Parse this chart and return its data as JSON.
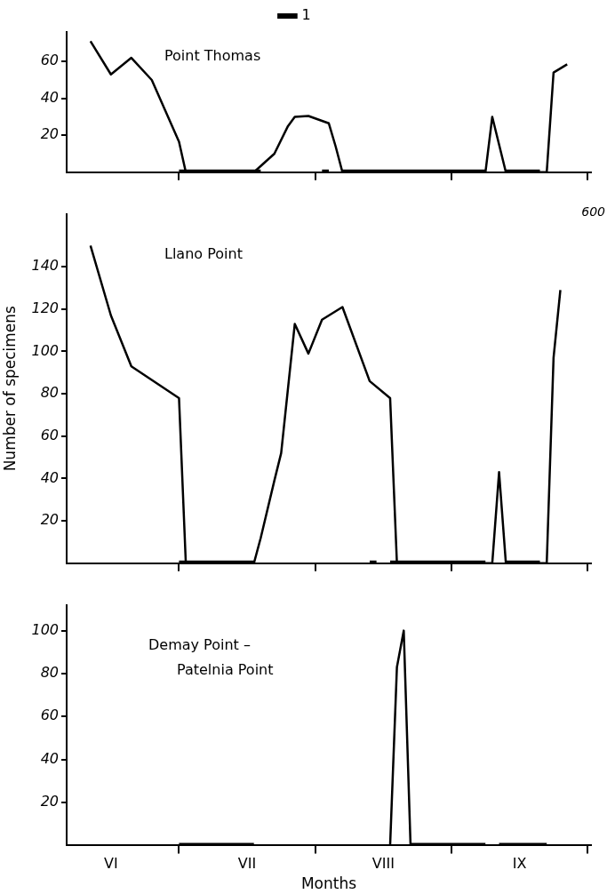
{
  "chart_data": [
    {
      "type": "line",
      "title": "Point Thomas",
      "legend": "top",
      "marker": "none",
      "grid": false,
      "tick_labels": "y",
      "ylim": [
        0,
        76
      ],
      "yticks": [
        20,
        40,
        60
      ],
      "categories": [
        null,
        null,
        null,
        null,
        null,
        null,
        null,
        null,
        null,
        null,
        null,
        null,
        null,
        null,
        null,
        null,
        null,
        null,
        null,
        null,
        null,
        null,
        null,
        null,
        null,
        null,
        null,
        null,
        null,
        null,
        null,
        null,
        null,
        null,
        null,
        null,
        null,
        null,
        null,
        null,
        null,
        null,
        null,
        null,
        null,
        null,
        null,
        null,
        null,
        null,
        null,
        null,
        null,
        null,
        null,
        null,
        null,
        null,
        null,
        null,
        null,
        null,
        null,
        null,
        null,
        null,
        null,
        null,
        null,
        null,
        null,
        null,
        null,
        null,
        null,
        null,
        null
      ],
      "series": [
        {
          "color": "#000000",
          "values": [
            null,
            null,
            null,
            71,
            null,
            null,
            53,
            null,
            null,
            62,
            null,
            null,
            50,
            null,
            null,
            null,
            16.5,
            0,
            null,
            null,
            null,
            null,
            null,
            null,
            null,
            null,
            null,
            0,
            null,
            null,
            10,
            null,
            25,
            30,
            null,
            30.5,
            null,
            null,
            26.5,
            14,
            0,
            null,
            null,
            null,
            null,
            null,
            null,
            null,
            null,
            null,
            null,
            null,
            null,
            null,
            null,
            null,
            null,
            null,
            null,
            null,
            null,
            0,
            30,
            null,
            0,
            null,
            null,
            null,
            null,
            null,
            0,
            54,
            null,
            58.5,
            null,
            null,
            null
          ]
        },
        {
          "name": "1",
          "color": "#000000",
          "values": [
            null,
            null,
            null,
            null,
            null,
            null,
            null,
            null,
            null,
            null,
            null,
            null,
            null,
            null,
            null,
            null,
            0,
            0,
            0,
            0,
            0,
            0,
            0,
            0,
            0,
            0,
            0,
            0,
            0,
            null,
            null,
            null,
            null,
            null,
            null,
            null,
            null,
            0,
            0,
            null,
            0,
            0,
            0,
            0,
            0,
            0,
            0,
            0,
            0,
            0,
            0,
            0,
            0,
            0,
            0,
            0,
            0,
            0,
            0,
            0,
            0,
            0,
            null,
            null,
            0,
            0,
            0,
            0,
            0,
            0,
            null,
            null,
            null,
            null,
            null,
            null,
            null
          ]
        }
      ]
    },
    {
      "type": "line",
      "title": "Llano Point",
      "ylabel": "Number of specimens",
      "marker": "none",
      "grid": false,
      "tick_labels": "y",
      "ylim": [
        0,
        165
      ],
      "yticks": [
        20,
        40,
        60,
        80,
        100,
        120,
        140
      ],
      "categories": [
        null,
        null,
        null,
        null,
        null,
        null,
        null,
        null,
        null,
        null,
        null,
        null,
        null,
        null,
        null,
        null,
        null,
        null,
        null,
        null,
        null,
        null,
        null,
        null,
        null,
        null,
        null,
        null,
        null,
        null,
        null,
        null,
        null,
        null,
        null,
        null,
        null,
        null,
        null,
        null,
        null,
        null,
        null,
        null,
        null,
        null,
        null,
        null,
        null,
        null,
        null,
        null,
        null,
        null,
        null,
        null,
        null,
        null,
        null,
        null,
        null,
        null,
        null,
        null,
        null,
        null,
        null,
        null,
        null,
        null,
        null,
        null,
        null,
        null,
        null,
        null,
        null
      ],
      "annotations": [
        "600"
      ],
      "series": [
        {
          "color": "#000000",
          "values": [
            null,
            null,
            null,
            150,
            null,
            null,
            117,
            null,
            null,
            93,
            null,
            null,
            null,
            null,
            null,
            null,
            78,
            0,
            null,
            null,
            null,
            null,
            null,
            null,
            null,
            null,
            null,
            0,
            12,
            null,
            39,
            52,
            null,
            113,
            null,
            99,
            null,
            115,
            null,
            null,
            121,
            null,
            null,
            null,
            86,
            null,
            null,
            78,
            0,
            null,
            null,
            null,
            null,
            null,
            null,
            null,
            null,
            null,
            null,
            null,
            null,
            null,
            0,
            43,
            0,
            null,
            null,
            null,
            null,
            null,
            0,
            97,
            129,
            null,
            null,
            null,
            null
          ]
        },
        {
          "color": "#000000",
          "values": [
            null,
            null,
            null,
            null,
            null,
            null,
            null,
            null,
            null,
            null,
            null,
            null,
            null,
            null,
            null,
            null,
            0,
            0,
            0,
            0,
            0,
            0,
            0,
            0,
            0,
            0,
            0,
            0,
            null,
            null,
            null,
            null,
            null,
            null,
            null,
            null,
            null,
            null,
            null,
            null,
            null,
            null,
            null,
            null,
            0,
            0,
            null,
            0,
            0,
            0,
            0,
            0,
            0,
            0,
            0,
            0,
            0,
            0,
            0,
            0,
            0,
            0,
            null,
            null,
            0,
            0,
            0,
            0,
            0,
            0,
            null,
            null,
            null,
            null,
            null,
            null,
            null
          ]
        }
      ]
    },
    {
      "type": "line",
      "title": "Demay Point –\nPatelnia Point",
      "xlabel": "Months",
      "marker": "none",
      "grid": false,
      "ylim": [
        0,
        112
      ],
      "yticks": [
        20,
        40,
        60,
        80,
        100
      ],
      "categories": [
        null,
        null,
        null,
        null,
        null,
        null,
        "VI",
        null,
        null,
        null,
        null,
        null,
        null,
        null,
        null,
        null,
        null,
        null,
        null,
        null,
        null,
        null,
        null,
        null,
        null,
        null,
        "VII",
        null,
        null,
        null,
        null,
        null,
        null,
        null,
        null,
        null,
        null,
        null,
        null,
        null,
        null,
        null,
        null,
        null,
        null,
        null,
        "VIII",
        null,
        null,
        null,
        null,
        null,
        null,
        null,
        null,
        null,
        null,
        null,
        null,
        null,
        null,
        null,
        null,
        null,
        null,
        null,
        "IX",
        null,
        null,
        null,
        null,
        null,
        null,
        null,
        null,
        null,
        null
      ],
      "series": [
        {
          "color": "#000000",
          "values": [
            null,
            null,
            null,
            null,
            null,
            null,
            null,
            null,
            null,
            null,
            null,
            null,
            null,
            null,
            null,
            null,
            null,
            null,
            null,
            null,
            null,
            null,
            null,
            null,
            null,
            null,
            null,
            null,
            null,
            null,
            null,
            null,
            null,
            null,
            null,
            null,
            null,
            null,
            null,
            null,
            null,
            null,
            null,
            null,
            null,
            null,
            null,
            0,
            83,
            100,
            0,
            null,
            null,
            null,
            null,
            null,
            null,
            null,
            null,
            null,
            null,
            null,
            null,
            null,
            null,
            null,
            null,
            null,
            null,
            null,
            null,
            null,
            null,
            null,
            null,
            null,
            null
          ]
        },
        {
          "color": "#000000",
          "values": [
            null,
            null,
            null,
            null,
            null,
            null,
            null,
            null,
            null,
            null,
            null,
            null,
            null,
            null,
            null,
            null,
            0,
            0,
            0,
            0,
            0,
            0,
            0,
            0,
            0,
            0,
            0,
            0,
            null,
            null,
            null,
            null,
            null,
            null,
            null,
            null,
            null,
            null,
            null,
            null,
            null,
            null,
            null,
            null,
            null,
            null,
            null,
            null,
            null,
            null,
            0,
            0,
            0,
            0,
            0,
            0,
            0,
            0,
            0,
            0,
            0,
            0,
            null,
            0,
            0,
            0,
            0,
            0,
            0,
            0,
            0,
            null,
            null,
            null,
            null,
            null,
            null
          ]
        }
      ]
    }
  ]
}
